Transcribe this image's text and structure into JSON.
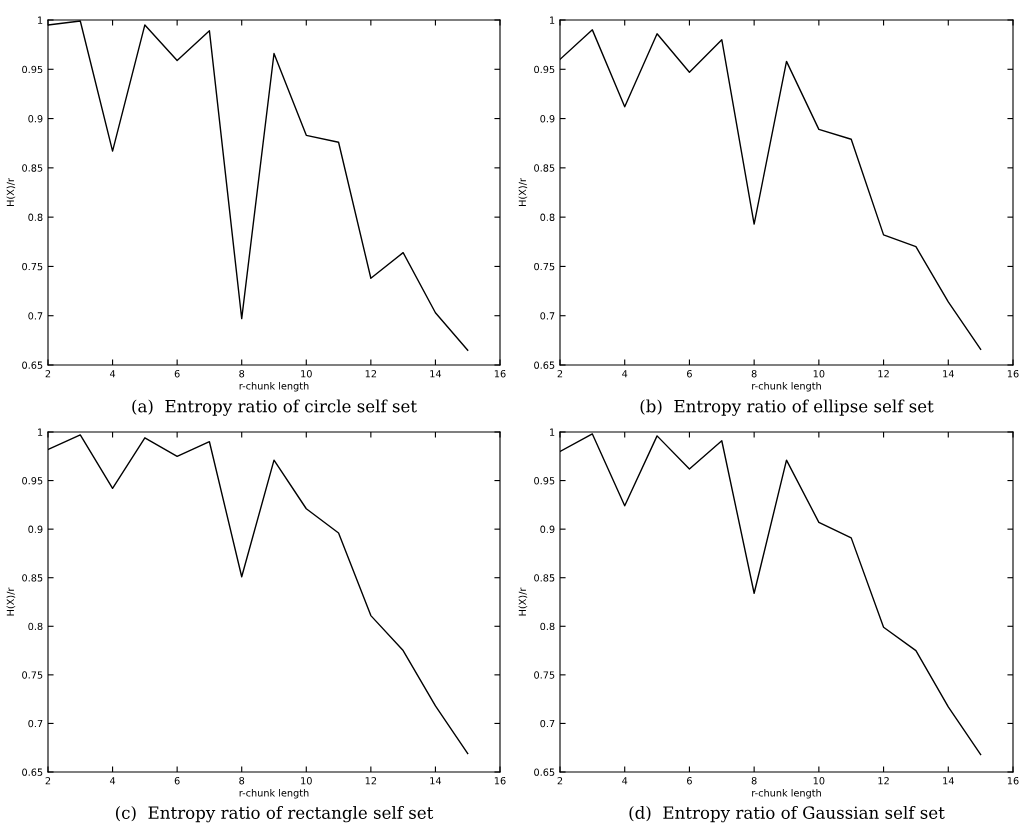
{
  "chart_data": [
    {
      "type": "line",
      "title": "(a)  Entropy ratio of circle self set",
      "xlabel": "r-chunk length",
      "ylabel": "H(X)/r",
      "x": [
        2,
        3,
        4,
        5,
        6,
        7,
        8,
        9,
        10,
        11,
        12,
        13,
        14,
        15
      ],
      "series": [
        {
          "color": "#000000",
          "values": [
            0.995,
            0.999,
            0.867,
            0.995,
            0.959,
            0.989,
            0.697,
            0.966,
            0.883,
            0.876,
            0.738,
            0.764,
            0.703,
            0.665
          ]
        }
      ],
      "xlim": [
        2,
        16
      ],
      "ylim": [
        0.65,
        1
      ],
      "xticks": [
        2,
        4,
        6,
        8,
        10,
        12,
        14,
        16
      ],
      "yticks": [
        0.65,
        0.7,
        0.75,
        0.8,
        0.85,
        0.9,
        0.95,
        1
      ],
      "grid": false
    },
    {
      "type": "line",
      "title": "(b)  Entropy ratio of ellipse self set",
      "xlabel": "r-chunk length",
      "ylabel": "H(X)/r",
      "x": [
        2,
        3,
        4,
        5,
        6,
        7,
        8,
        9,
        10,
        11,
        12,
        13,
        14,
        15
      ],
      "series": [
        {
          "color": "#000000",
          "values": [
            0.96,
            0.99,
            0.912,
            0.986,
            0.947,
            0.98,
            0.793,
            0.958,
            0.889,
            0.879,
            0.782,
            0.77,
            0.714,
            0.666
          ]
        }
      ],
      "xlim": [
        2,
        16
      ],
      "ylim": [
        0.65,
        1
      ],
      "xticks": [
        2,
        4,
        6,
        8,
        10,
        12,
        14,
        16
      ],
      "yticks": [
        0.65,
        0.7,
        0.75,
        0.8,
        0.85,
        0.9,
        0.95,
        1
      ],
      "grid": false
    },
    {
      "type": "line",
      "title": "(c)  Entropy ratio of rectangle self set",
      "xlabel": "r-chunk length",
      "ylabel": "H(X)/r",
      "x": [
        2,
        3,
        4,
        5,
        6,
        7,
        8,
        9,
        10,
        11,
        12,
        13,
        14,
        15
      ],
      "series": [
        {
          "color": "#000000",
          "values": [
            0.982,
            0.997,
            0.942,
            0.994,
            0.975,
            0.99,
            0.851,
            0.971,
            0.921,
            0.896,
            0.811,
            0.775,
            0.718,
            0.669
          ]
        }
      ],
      "xlim": [
        2,
        16
      ],
      "ylim": [
        0.65,
        1
      ],
      "xticks": [
        2,
        4,
        6,
        8,
        10,
        12,
        14,
        16
      ],
      "yticks": [
        0.65,
        0.7,
        0.75,
        0.8,
        0.85,
        0.9,
        0.95,
        1
      ],
      "grid": false
    },
    {
      "type": "line",
      "title": "(d)  Entropy ratio of Gaussian self set",
      "xlabel": "r-chunk length",
      "ylabel": "H(X)/r",
      "x": [
        2,
        3,
        4,
        5,
        6,
        7,
        8,
        9,
        10,
        11,
        12,
        13,
        14,
        15
      ],
      "series": [
        {
          "color": "#000000",
          "values": [
            0.98,
            0.998,
            0.924,
            0.996,
            0.962,
            0.991,
            0.834,
            0.971,
            0.907,
            0.891,
            0.799,
            0.775,
            0.717,
            0.668
          ]
        }
      ],
      "xlim": [
        2,
        16
      ],
      "ylim": [
        0.65,
        1
      ],
      "xticks": [
        2,
        4,
        6,
        8,
        10,
        12,
        14,
        16
      ],
      "yticks": [
        0.65,
        0.7,
        0.75,
        0.8,
        0.85,
        0.9,
        0.95,
        1
      ],
      "grid": false
    }
  ]
}
